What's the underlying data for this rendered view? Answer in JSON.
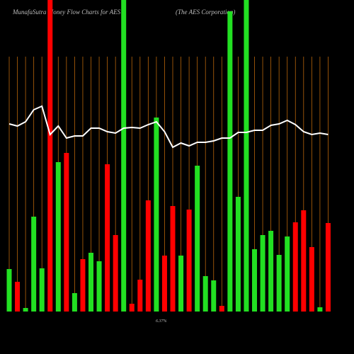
{
  "chart_data": {
    "type": "bar",
    "title": "MunafaSutra Money Flow Charts for AES",
    "subtitle": "(The AES Corporation)",
    "annotation": "6.37%",
    "categories": [
      null,
      null,
      null,
      null,
      null,
      null,
      null,
      null,
      null,
      null,
      null,
      null,
      null,
      null,
      null,
      null,
      null,
      null,
      null,
      null,
      null,
      null,
      null,
      null,
      null,
      null,
      null,
      null,
      null,
      null,
      null,
      null,
      null,
      null,
      null,
      null,
      null,
      null,
      null,
      null
    ],
    "values": [
      60,
      42,
      5,
      134,
      61,
      440,
      211,
      224,
      26,
      74,
      83,
      71,
      208,
      108,
      440,
      11,
      45,
      157,
      274,
      79,
      149,
      79,
      144,
      206,
      50,
      44,
      8,
      424,
      162,
      440,
      88,
      108,
      114,
      80,
      106,
      126,
      143,
      91,
      6,
      125
    ],
    "colors": [
      "#22e022",
      "#ff0000",
      "#22e022",
      "#22e022",
      "#22e022",
      "#ff0000",
      "#22e022",
      "#ff0000",
      "#22e022",
      "#ff0000",
      "#22e022",
      "#22e022",
      "#ff0000",
      "#ff0000",
      "#22e022",
      "#ff0000",
      "#ff0000",
      "#ff0000",
      "#22e022",
      "#ff0000",
      "#ff0000",
      "#22e022",
      "#ff0000",
      "#22e022",
      "#22e022",
      "#22e022",
      "#ff0000",
      "#22e022",
      "#22e022",
      "#22e022",
      "#22e022",
      "#22e022",
      "#22e022",
      "#22e022",
      "#22e022",
      "#ff0000",
      "#ff0000",
      "#ff0000",
      "#22e022",
      "#ff0000"
    ],
    "line_values": [
      265,
      262,
      268,
      285,
      290,
      250,
      262,
      245,
      248,
      248,
      259,
      259,
      254,
      252,
      259,
      260,
      259,
      264,
      268,
      254,
      232,
      238,
      234,
      239,
      239,
      241,
      245,
      245,
      253,
      253,
      256,
      256,
      263,
      265,
      270,
      264,
      254,
      250,
      252,
      250
    ],
    "line_color": "#ffffff",
    "grid_color": "#b8650a",
    "ylim": [
      0,
      440
    ]
  }
}
